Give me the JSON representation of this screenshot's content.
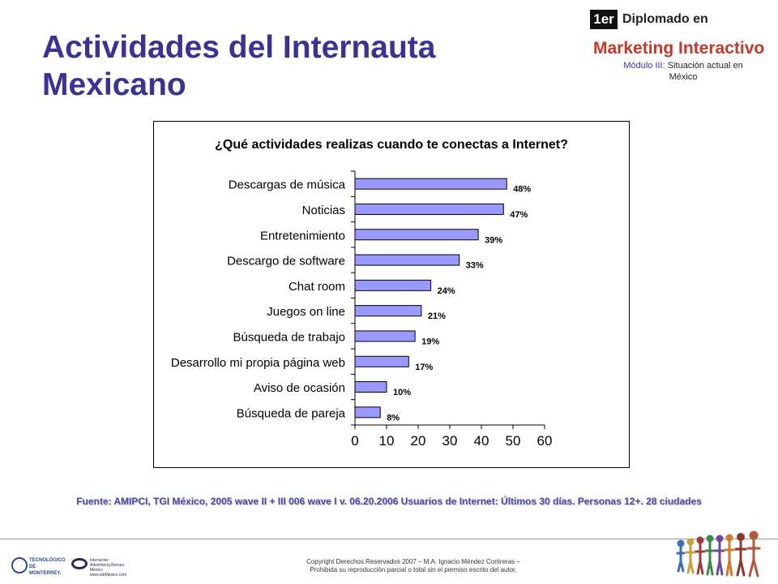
{
  "slide": {
    "title_line1": "Actividades del Internauta",
    "title_line2": "Mexicano"
  },
  "branding": {
    "badge": "1er",
    "line1": "Diplomado en",
    "line2": "Marketing Interactivo",
    "module_label": "Módulo III:",
    "module_rest": "Situación actual en",
    "module_line2": "México"
  },
  "chart_data": {
    "type": "bar",
    "orientation": "horizontal",
    "title": "¿Qué actividades realizas cuando te conectas a Internet?",
    "categories": [
      "Descargas de música",
      "Noticias",
      "Entretenimiento",
      "Descargo de software",
      "Chat room",
      "Juegos on line",
      "Búsqueda de trabajo",
      "Desarrollo mi propia página web",
      "Aviso de ocasión",
      "Búsqueda de pareja"
    ],
    "values": [
      48,
      47,
      39,
      33,
      24,
      21,
      19,
      17,
      10,
      8
    ],
    "value_labels": [
      "48%",
      "47%",
      "39%",
      "33%",
      "24%",
      "21%",
      "19%",
      "17%",
      "10%",
      "8%"
    ],
    "x_ticks": [
      0,
      10,
      20,
      30,
      40,
      50,
      60
    ],
    "xlim": [
      0,
      60
    ],
    "xlabel": "",
    "ylabel": "",
    "grid": false,
    "bar_color": "#9999ff",
    "bar_border": "#000000"
  },
  "source_note": "Fuente: AMIPCI, TGI México, 2005 wave II + III 006 wave I v. 06.20.2006 Usuarios de Internet: Últimos 30 días. Personas 12+. 28 ciudades",
  "footer": {
    "copyright_line1": "Copyright Derechos Reservados 2007 – M.A. Ignacio Méndez Contreras –",
    "copyright_line2": "Prohibida su reproducción parcial o total sin el permiso escrito del autor.",
    "tec_logo_text": "TECNOLÓGICO DE MONTERREY.",
    "iab_logo_text": "Interactive Advertising Bureau México www.iabMexico.com"
  },
  "colors": {
    "title": "#3a3393",
    "brand_accent": "#c0392b",
    "source_text": "#4a4aa8"
  }
}
